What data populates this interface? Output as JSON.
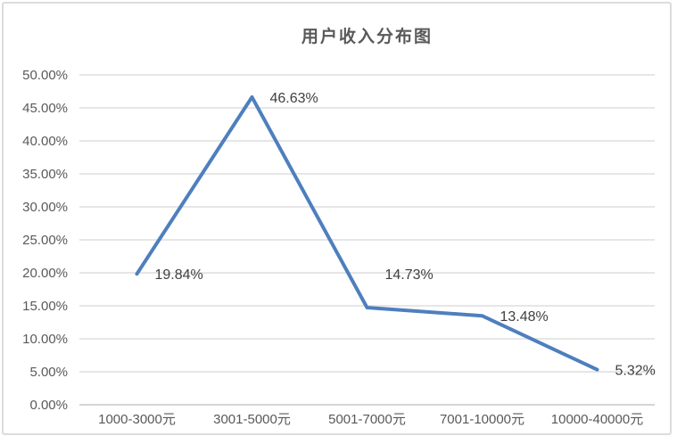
{
  "frame": {
    "background": "#ffffff",
    "border_color": "#dcdcdc"
  },
  "chart_data": {
    "type": "line",
    "title": "用户收入分布图",
    "categories": [
      "1000-3000元",
      "3001-5000元",
      "5001-7000元",
      "7001-10000元",
      "10000-40000元"
    ],
    "values": [
      19.84,
      46.63,
      14.73,
      13.48,
      5.32
    ],
    "data_labels": [
      "19.84%",
      "46.63%",
      "14.73%",
      "13.48%",
      "5.32%"
    ],
    "y_ticks": [
      "0.00%",
      "5.00%",
      "10.00%",
      "15.00%",
      "20.00%",
      "25.00%",
      "30.00%",
      "35.00%",
      "40.00%",
      "45.00%",
      "50.00%"
    ],
    "ylim": [
      0,
      50
    ],
    "xlabel": "",
    "ylabel": "",
    "grid": "horizontal",
    "legend": "none",
    "markers": "none",
    "line_color": "#4e7fbe",
    "line_width": 4,
    "data_label_color": "#404040",
    "axis_text_color": "#595959",
    "title_color": "#595959",
    "gridline_color": "#e2e2e2",
    "axis_line_color": "#cfcfcf",
    "layout": {
      "plot_left": 85,
      "plot_right": 730,
      "plot_top": 80,
      "plot_bottom": 450,
      "y_tick_label_right": 72,
      "x_tick_label_baseline": 471,
      "data_label_dx": 20,
      "data_label_dy": [
        0,
        0,
        -38,
        0,
        0
      ],
      "axis_font_size": 15,
      "data_label_font_size": 16
    }
  }
}
